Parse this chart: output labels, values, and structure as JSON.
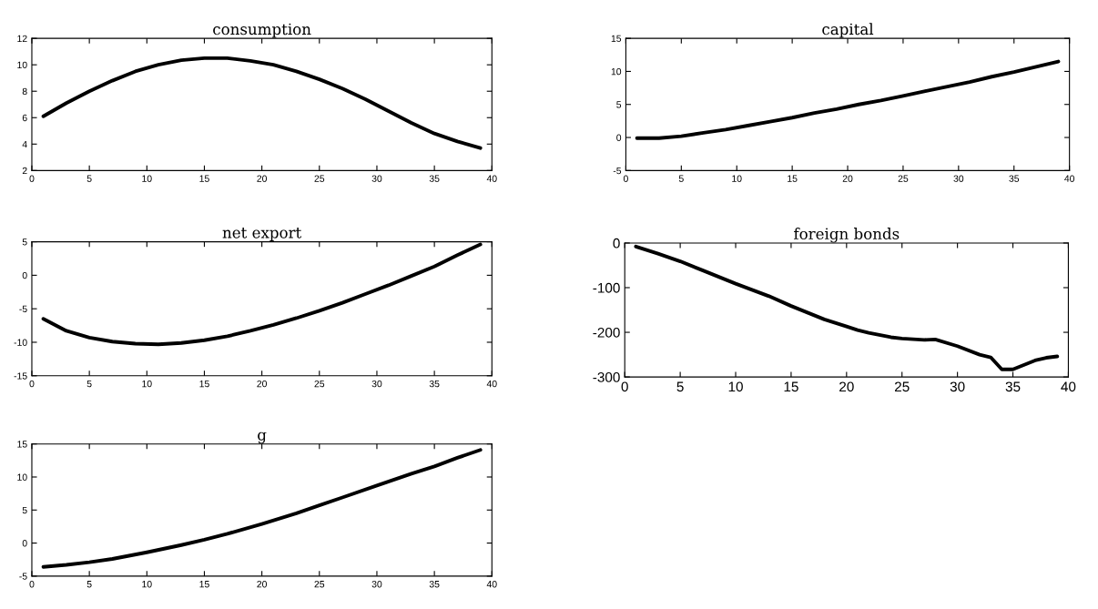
{
  "chart_data": [
    {
      "type": "line",
      "title": "consumption",
      "x": [
        1,
        3,
        5,
        7,
        9,
        11,
        13,
        15,
        17,
        19,
        21,
        23,
        25,
        27,
        29,
        31,
        33,
        35,
        37,
        39
      ],
      "values": [
        6.1,
        7.1,
        8.0,
        8.8,
        9.5,
        10.0,
        10.35,
        10.5,
        10.5,
        10.3,
        10.0,
        9.5,
        8.9,
        8.2,
        7.4,
        6.5,
        5.6,
        4.8,
        4.2,
        3.7
      ],
      "color": "#000000",
      "xlim": [
        0,
        40
      ],
      "ylim": [
        2,
        12
      ],
      "xticks": [
        0,
        5,
        10,
        15,
        20,
        25,
        30,
        35,
        40
      ],
      "yticks": [
        2,
        4,
        6,
        8,
        10,
        12
      ]
    },
    {
      "type": "line",
      "title": "capital",
      "x": [
        1,
        3,
        5,
        7,
        9,
        11,
        13,
        15,
        17,
        19,
        21,
        23,
        25,
        27,
        29,
        31,
        33,
        35,
        37,
        39
      ],
      "values": [
        -0.1,
        -0.1,
        0.2,
        0.7,
        1.2,
        1.8,
        2.4,
        3.0,
        3.7,
        4.3,
        5.0,
        5.6,
        6.3,
        7.0,
        7.7,
        8.4,
        9.2,
        9.9,
        10.7,
        11.5
      ],
      "color": "#000000",
      "xlim": [
        0,
        40
      ],
      "ylim": [
        -5,
        15
      ],
      "xticks": [
        0,
        5,
        10,
        15,
        20,
        25,
        30,
        35,
        40
      ],
      "yticks": [
        -5,
        0,
        5,
        10,
        15
      ]
    },
    {
      "type": "line",
      "title": "net export",
      "x": [
        1,
        3,
        5,
        7,
        9,
        11,
        13,
        15,
        17,
        19,
        21,
        23,
        25,
        27,
        29,
        31,
        33,
        35,
        37,
        39
      ],
      "values": [
        -6.5,
        -8.3,
        -9.3,
        -9.9,
        -10.2,
        -10.3,
        -10.1,
        -9.7,
        -9.1,
        -8.3,
        -7.4,
        -6.4,
        -5.3,
        -4.1,
        -2.8,
        -1.5,
        -0.1,
        1.3,
        3.0,
        4.6
      ],
      "color": "#000000",
      "xlim": [
        0,
        40
      ],
      "ylim": [
        -15,
        5
      ],
      "xticks": [
        0,
        5,
        10,
        15,
        20,
        25,
        30,
        35,
        40
      ],
      "yticks": [
        -15,
        -10,
        -5,
        0,
        5
      ]
    },
    {
      "type": "line",
      "title": "foreign bonds",
      "x": [
        1,
        3,
        5,
        7,
        10,
        13,
        15,
        18,
        20,
        21,
        22,
        24,
        25,
        27,
        28,
        30,
        32,
        33,
        34,
        35,
        37,
        38,
        39
      ],
      "values": [
        -8,
        -24,
        -41,
        -61,
        -91,
        -119,
        -141,
        -171,
        -187,
        -195,
        -201,
        -211,
        -214,
        -217,
        -216,
        -231,
        -250,
        -256,
        -283,
        -283,
        -263,
        -257,
        -254
      ],
      "color": "#000000",
      "xlim": [
        0,
        40
      ],
      "ylim": [
        -300,
        0
      ],
      "xticks": [
        0,
        5,
        10,
        15,
        20,
        25,
        30,
        35,
        40
      ],
      "yticks": [
        -300,
        -200,
        -100,
        0
      ]
    },
    {
      "type": "line",
      "title": "g",
      "x": [
        1,
        3,
        5,
        7,
        10,
        13,
        15,
        17,
        20,
        23,
        25,
        27,
        30,
        33,
        35,
        37,
        39
      ],
      "values": [
        -3.6,
        -3.3,
        -2.9,
        -2.4,
        -1.4,
        -0.3,
        0.5,
        1.4,
        2.9,
        4.5,
        5.7,
        6.9,
        8.7,
        10.5,
        11.6,
        12.9,
        14.1
      ],
      "color": "#000000",
      "xlim": [
        0,
        40
      ],
      "ylim": [
        -5,
        15
      ],
      "xticks": [
        0,
        5,
        10,
        15,
        20,
        25,
        30,
        35,
        40
      ],
      "yticks": [
        -5,
        0,
        5,
        10,
        15
      ]
    }
  ]
}
